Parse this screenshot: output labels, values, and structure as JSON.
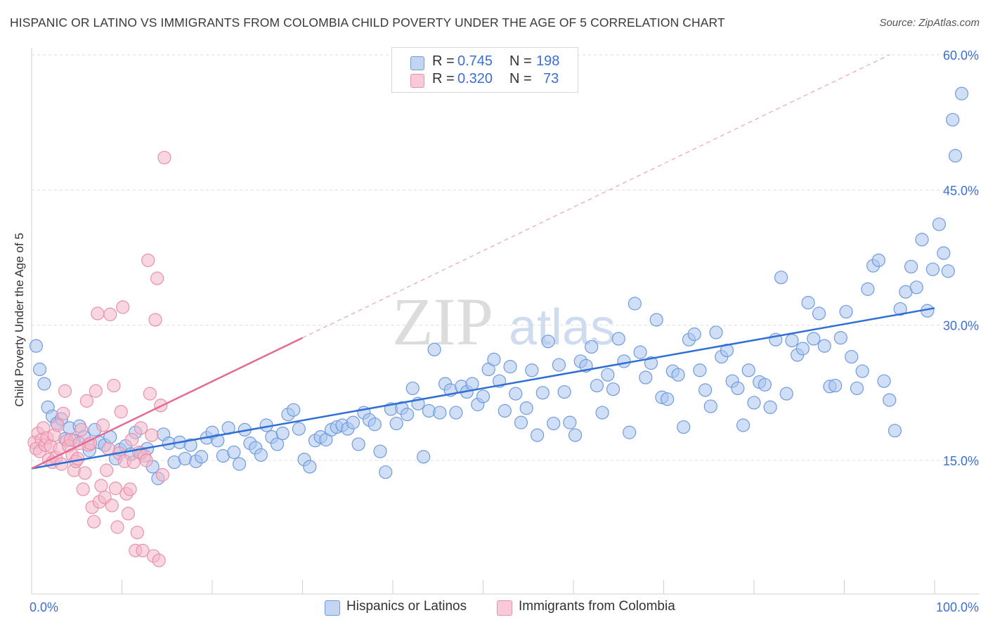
{
  "title": "HISPANIC OR LATINO VS IMMIGRANTS FROM COLOMBIA CHILD POVERTY UNDER THE AGE OF 5 CORRELATION CHART",
  "source": "Source: ZipAtlas.com",
  "watermark": {
    "zip": "ZIP",
    "atlas": "atlas"
  },
  "legend_top": {
    "rows": [
      {
        "r_label": "R =",
        "r_value": "0.745",
        "n_label": "N =",
        "n_value": "198",
        "color": "#a9c4ee"
      },
      {
        "r_label": "R =",
        "r_value": "0.320",
        "n_label": "N =",
        "n_value": "73",
        "color": "#f4b6c8"
      }
    ]
  },
  "legend_bottom": [
    {
      "label": "Hispanics or Latinos",
      "color": "#a9c4ee"
    },
    {
      "label": "Immigrants from Colombia",
      "color": "#f4b6c8"
    }
  ],
  "chart_data": {
    "type": "scatter",
    "title": "HISPANIC OR LATINO VS IMMIGRANTS FROM COLOMBIA CHILD POVERTY UNDER THE AGE OF 5 CORRELATION CHART",
    "xlabel": "",
    "ylabel": "Child Poverty Under the Age of 5",
    "xlim": [
      0,
      105
    ],
    "ylim": [
      0,
      62
    ],
    "x_tick_labels": [
      {
        "value": 0,
        "label": "0.0%"
      },
      {
        "value": 100,
        "label": "100.0%"
      }
    ],
    "y_tick_labels": [
      {
        "value": 15,
        "label": "15.0%"
      },
      {
        "value": 30,
        "label": "30.0%"
      },
      {
        "value": 45,
        "label": "45.0%"
      },
      {
        "value": 60,
        "label": "60.0%"
      }
    ],
    "x_minor_ticks": [
      0,
      10,
      20,
      30,
      40,
      50,
      60,
      70,
      80,
      90,
      100
    ],
    "grid": true,
    "series": [
      {
        "name": "Hispanics or Latinos",
        "color": "#6f9be0",
        "fill": "#a9c4ee",
        "trend": {
          "x": [
            0,
            100
          ],
          "y": [
            14.1,
            31.9
          ],
          "style": "solid",
          "color": "#2f6fd6"
        },
        "points": [
          [
            0.5,
            27.7
          ],
          [
            0.9,
            25.1
          ],
          [
            1.4,
            23.5
          ],
          [
            1.8,
            20.9
          ],
          [
            2.3,
            19.9
          ],
          [
            2.8,
            19.1
          ],
          [
            3.3,
            19.6
          ],
          [
            3.7,
            17.4
          ],
          [
            4.2,
            18.6
          ],
          [
            4.7,
            17.2
          ],
          [
            5.3,
            18.8
          ],
          [
            5.8,
            17.6
          ],
          [
            6.4,
            16.1
          ],
          [
            7.0,
            18.4
          ],
          [
            7.5,
            17.0
          ],
          [
            8.1,
            16.7
          ],
          [
            8.7,
            17.6
          ],
          [
            9.3,
            15.2
          ],
          [
            9.8,
            16.2
          ],
          [
            10.4,
            16.6
          ],
          [
            11.0,
            15.7
          ],
          [
            11.5,
            18.1
          ],
          [
            12.1,
            15.8
          ],
          [
            12.8,
            16.3
          ],
          [
            13.4,
            14.3
          ],
          [
            14.0,
            13.0
          ],
          [
            14.6,
            17.9
          ],
          [
            15.2,
            16.9
          ],
          [
            15.8,
            14.8
          ],
          [
            16.4,
            17.0
          ],
          [
            17.0,
            15.2
          ],
          [
            17.6,
            16.7
          ],
          [
            18.2,
            14.9
          ],
          [
            18.8,
            15.4
          ],
          [
            19.4,
            17.5
          ],
          [
            20.0,
            18.1
          ],
          [
            20.6,
            17.2
          ],
          [
            21.2,
            15.5
          ],
          [
            21.8,
            18.6
          ],
          [
            22.4,
            15.9
          ],
          [
            23.0,
            14.6
          ],
          [
            23.6,
            18.4
          ],
          [
            24.2,
            16.9
          ],
          [
            24.8,
            16.4
          ],
          [
            25.4,
            15.6
          ],
          [
            26.0,
            18.9
          ],
          [
            26.6,
            17.6
          ],
          [
            27.2,
            16.8
          ],
          [
            27.8,
            18.0
          ],
          [
            28.4,
            20.1
          ],
          [
            29.0,
            20.6
          ],
          [
            29.6,
            18.5
          ],
          [
            30.2,
            15.1
          ],
          [
            30.8,
            14.3
          ],
          [
            31.4,
            17.2
          ],
          [
            32.0,
            17.6
          ],
          [
            32.6,
            17.3
          ],
          [
            33.2,
            18.4
          ],
          [
            33.8,
            18.7
          ],
          [
            34.4,
            18.9
          ],
          [
            35.0,
            18.5
          ],
          [
            35.6,
            19.2
          ],
          [
            36.2,
            16.8
          ],
          [
            36.8,
            20.3
          ],
          [
            37.4,
            19.5
          ],
          [
            38.0,
            19.0
          ],
          [
            38.6,
            16.0
          ],
          [
            39.2,
            13.7
          ],
          [
            39.8,
            20.7
          ],
          [
            40.4,
            19.1
          ],
          [
            41.0,
            20.8
          ],
          [
            41.6,
            20.1
          ],
          [
            42.2,
            23.0
          ],
          [
            42.8,
            21.3
          ],
          [
            43.4,
            15.4
          ],
          [
            44.0,
            20.5
          ],
          [
            44.6,
            27.3
          ],
          [
            45.2,
            20.3
          ],
          [
            45.8,
            23.5
          ],
          [
            46.4,
            22.8
          ],
          [
            47.0,
            20.3
          ],
          [
            47.6,
            23.2
          ],
          [
            48.2,
            22.6
          ],
          [
            48.8,
            23.5
          ],
          [
            49.4,
            21.2
          ],
          [
            50.0,
            22.1
          ],
          [
            50.6,
            25.1
          ],
          [
            51.2,
            26.2
          ],
          [
            51.8,
            23.8
          ],
          [
            52.4,
            20.5
          ],
          [
            53.0,
            25.4
          ],
          [
            53.6,
            22.4
          ],
          [
            54.2,
            19.2
          ],
          [
            54.8,
            20.8
          ],
          [
            55.4,
            25.0
          ],
          [
            56.0,
            17.8
          ],
          [
            56.6,
            22.5
          ],
          [
            57.2,
            28.2
          ],
          [
            57.8,
            19.1
          ],
          [
            58.4,
            25.6
          ],
          [
            59.0,
            22.6
          ],
          [
            59.6,
            19.2
          ],
          [
            60.2,
            17.8
          ],
          [
            60.8,
            26.0
          ],
          [
            61.4,
            25.5
          ],
          [
            62.0,
            27.6
          ],
          [
            62.6,
            23.3
          ],
          [
            63.2,
            20.3
          ],
          [
            63.8,
            24.5
          ],
          [
            64.4,
            22.9
          ],
          [
            65.0,
            28.5
          ],
          [
            65.6,
            26.0
          ],
          [
            66.2,
            18.1
          ],
          [
            66.8,
            32.4
          ],
          [
            67.4,
            27.0
          ],
          [
            68.0,
            24.2
          ],
          [
            68.6,
            25.8
          ],
          [
            69.2,
            30.6
          ],
          [
            69.8,
            22.0
          ],
          [
            70.4,
            21.8
          ],
          [
            71.0,
            24.9
          ],
          [
            71.6,
            24.5
          ],
          [
            72.2,
            18.7
          ],
          [
            72.8,
            28.4
          ],
          [
            73.4,
            29.0
          ],
          [
            74.0,
            25.0
          ],
          [
            74.6,
            22.8
          ],
          [
            75.2,
            21.0
          ],
          [
            75.8,
            29.2
          ],
          [
            76.4,
            26.5
          ],
          [
            77.0,
            27.2
          ],
          [
            77.6,
            23.8
          ],
          [
            78.2,
            23.0
          ],
          [
            78.8,
            18.9
          ],
          [
            79.4,
            25.0
          ],
          [
            80.0,
            21.4
          ],
          [
            80.6,
            23.7
          ],
          [
            81.2,
            23.4
          ],
          [
            81.8,
            20.9
          ],
          [
            82.4,
            28.4
          ],
          [
            83.0,
            35.3
          ],
          [
            83.6,
            22.4
          ],
          [
            84.2,
            28.3
          ],
          [
            84.8,
            26.7
          ],
          [
            85.4,
            27.4
          ],
          [
            86.0,
            32.5
          ],
          [
            86.6,
            28.5
          ],
          [
            87.2,
            31.3
          ],
          [
            87.8,
            27.7
          ],
          [
            88.4,
            23.2
          ],
          [
            89.0,
            23.3
          ],
          [
            89.6,
            28.6
          ],
          [
            90.2,
            31.5
          ],
          [
            90.8,
            26.5
          ],
          [
            91.4,
            23.0
          ],
          [
            92.0,
            24.9
          ],
          [
            92.6,
            34.0
          ],
          [
            93.2,
            36.6
          ],
          [
            93.8,
            37.2
          ],
          [
            94.4,
            23.8
          ],
          [
            95.0,
            21.7
          ],
          [
            95.6,
            18.3
          ],
          [
            96.2,
            31.8
          ],
          [
            96.8,
            33.7
          ],
          [
            97.4,
            36.5
          ],
          [
            98.0,
            34.2
          ],
          [
            98.6,
            39.5
          ],
          [
            99.2,
            31.6
          ],
          [
            99.8,
            36.2
          ],
          [
            100.5,
            41.2
          ],
          [
            101.0,
            38.0
          ],
          [
            101.5,
            36.0
          ],
          [
            102.0,
            52.8
          ],
          [
            102.3,
            48.8
          ],
          [
            103.0,
            55.7
          ]
        ]
      },
      {
        "name": "Immigrants from Colombia",
        "color": "#e891ac",
        "fill": "#f4b6c8",
        "trend": {
          "x": [
            0,
            30,
            95
          ],
          "y": [
            14.1,
            28.6,
            60.0
          ],
          "style": "solid-then-dashed",
          "color": "#e36a95"
        },
        "points": [
          [
            0.3,
            17.0
          ],
          [
            0.5,
            16.3
          ],
          [
            0.7,
            18.0
          ],
          [
            0.9,
            16.0
          ],
          [
            1.1,
            17.3
          ],
          [
            1.3,
            18.6
          ],
          [
            1.5,
            16.7
          ],
          [
            1.7,
            17.5
          ],
          [
            1.9,
            15.1
          ],
          [
            2.1,
            16.6
          ],
          [
            2.3,
            14.8
          ],
          [
            2.5,
            17.8
          ],
          [
            2.7,
            15.3
          ],
          [
            2.9,
            18.9
          ],
          [
            3.1,
            16.3
          ],
          [
            3.3,
            14.6
          ],
          [
            3.5,
            20.2
          ],
          [
            3.7,
            22.7
          ],
          [
            3.9,
            17.2
          ],
          [
            4.1,
            16.6
          ],
          [
            4.3,
            17.3
          ],
          [
            4.5,
            15.6
          ],
          [
            4.7,
            13.9
          ],
          [
            4.9,
            14.9
          ],
          [
            5.1,
            15.2
          ],
          [
            5.3,
            16.9
          ],
          [
            5.5,
            18.4
          ],
          [
            5.7,
            11.8
          ],
          [
            5.9,
            13.6
          ],
          [
            6.1,
            21.6
          ],
          [
            6.3,
            16.7
          ],
          [
            6.5,
            16.9
          ],
          [
            6.7,
            9.8
          ],
          [
            6.9,
            8.2
          ],
          [
            7.1,
            22.7
          ],
          [
            7.3,
            31.3
          ],
          [
            7.5,
            10.4
          ],
          [
            7.7,
            12.2
          ],
          [
            7.9,
            18.9
          ],
          [
            8.1,
            10.9
          ],
          [
            8.3,
            13.9
          ],
          [
            8.5,
            16.3
          ],
          [
            8.7,
            31.2
          ],
          [
            8.9,
            10.0
          ],
          [
            9.1,
            23.3
          ],
          [
            9.3,
            11.9
          ],
          [
            9.5,
            7.6
          ],
          [
            9.7,
            15.8
          ],
          [
            9.9,
            20.4
          ],
          [
            10.1,
            32.0
          ],
          [
            10.3,
            14.9
          ],
          [
            10.5,
            11.3
          ],
          [
            10.7,
            9.1
          ],
          [
            10.9,
            11.8
          ],
          [
            11.1,
            17.3
          ],
          [
            11.3,
            14.8
          ],
          [
            11.5,
            5.0
          ],
          [
            11.7,
            7.0
          ],
          [
            11.9,
            15.9
          ],
          [
            12.1,
            18.6
          ],
          [
            12.3,
            5.0
          ],
          [
            12.5,
            15.5
          ],
          [
            12.7,
            15.0
          ],
          [
            12.9,
            37.2
          ],
          [
            13.1,
            22.4
          ],
          [
            13.3,
            17.8
          ],
          [
            13.5,
            4.4
          ],
          [
            13.7,
            30.6
          ],
          [
            13.9,
            35.2
          ],
          [
            14.1,
            3.9
          ],
          [
            14.3,
            21.1
          ],
          [
            14.5,
            13.4
          ],
          [
            14.7,
            48.6
          ]
        ]
      }
    ]
  }
}
